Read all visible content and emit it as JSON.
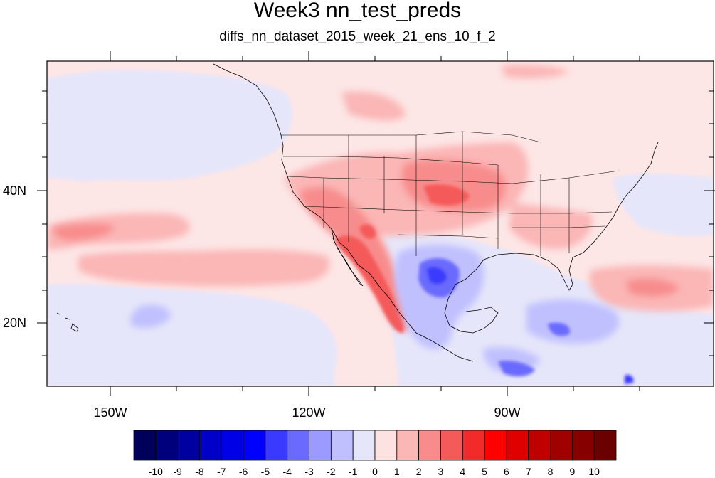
{
  "title": "Week3 nn_test_preds",
  "subtitle": "diffs_nn_dataset_2015_week_21_ens_10_f_2",
  "map": {
    "lon_range": [
      -160,
      -62
    ],
    "lat_range": [
      11,
      60
    ],
    "lat_tick_labels": [
      "40N",
      "20N"
    ],
    "lon_tick_labels": [
      "150W",
      "120W",
      "90W"
    ],
    "field": "difference (nn_test_preds)",
    "notable_regions": [
      {
        "region": "Southwest US / Baja / western Mexico coast",
        "sign": "positive",
        "peak_value": 6
      },
      {
        "region": "Central Plains (Kansas/Nebraska/Iowa)",
        "sign": "positive",
        "peak_value": 4
      },
      {
        "region": "Texas / Gulf of Mexico",
        "sign": "negative",
        "peak_value": -5
      },
      {
        "region": "Central America / Caribbean",
        "sign": "negative",
        "peak_value": -4
      },
      {
        "region": "Northeast Pacific (~30N)",
        "sign": "positive",
        "peak_value": 2
      },
      {
        "region": "Central Atlantic (~25N)",
        "sign": "positive",
        "peak_value": 3
      }
    ]
  },
  "colorbar": {
    "labels": [
      "-10",
      "-9",
      "-8",
      "-7",
      "-6",
      "-5",
      "-4",
      "-3",
      "-2",
      "-1",
      "0",
      "1",
      "2",
      "3",
      "4",
      "5",
      "6",
      "7",
      "8",
      "9",
      "10"
    ],
    "colors": [
      "#00005a",
      "#00007c",
      "#0000a0",
      "#0000c8",
      "#0000e6",
      "#0000ff",
      "#3a3aff",
      "#6a6aff",
      "#9a9aff",
      "#c0c0ff",
      "#e6e6fa",
      "#fde2e2",
      "#fbb6b6",
      "#f88c8c",
      "#f55a5a",
      "#f22a2a",
      "#ff0000",
      "#e00000",
      "#c00000",
      "#a00000",
      "#860000",
      "#6a0000"
    ]
  }
}
